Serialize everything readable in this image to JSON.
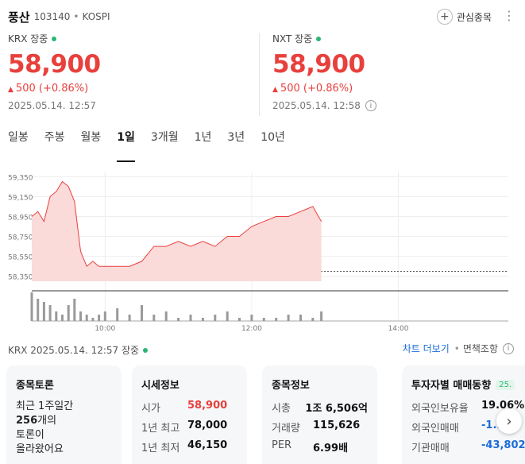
{
  "header": {
    "stock_name": "풍산",
    "stock_code": "103140",
    "market": "KOSPI",
    "watch_label": "관심종목"
  },
  "krx": {
    "label": "KRX 장중",
    "price": "58,900",
    "change": "500",
    "change_pct": "(+0.86%)",
    "timestamp": "2025.05.14. 12:57"
  },
  "nxt": {
    "label": "NXT 장중",
    "price": "58,900",
    "change": "500",
    "change_pct": "(+0.86%)",
    "timestamp": "2025.05.14. 12:58"
  },
  "tabs": [
    "일봉",
    "주봉",
    "월봉",
    "1일",
    "3개월",
    "1년",
    "3년",
    "10년"
  ],
  "active_tab": "1일",
  "status": {
    "text": "KRX  2025.05.14. 12:57 장중",
    "chart_more": "차트 더보기",
    "disclaimer": "면책조항"
  },
  "cards": {
    "discussion": {
      "title": "종목토론",
      "line1": "최근 1주일간",
      "line2a": "256",
      "line2b": "개의",
      "line3": "토론이",
      "line4": "올라왔어요"
    },
    "market_info": {
      "title": "시세정보",
      "rows": [
        {
          "k": "시가",
          "v": "58,900"
        },
        {
          "k": "1년 최고",
          "v": "78,000"
        },
        {
          "k": "1년 최저",
          "v": "46,150"
        }
      ]
    },
    "stock_info": {
      "title": "종목정보",
      "rows": [
        {
          "k": "시총",
          "v": "1조 6,506억"
        },
        {
          "k": "거래량",
          "v": "115,626"
        },
        {
          "k": "PER",
          "v": "6.99배"
        }
      ]
    },
    "investor": {
      "title": "투자자별 매매동향",
      "badge": "25.",
      "rows": [
        {
          "k": "외국인보유율",
          "v": "19.06%"
        },
        {
          "k": "외국인매매",
          "v": "-1..."
        },
        {
          "k": "기관매매",
          "v": "-43,802"
        }
      ]
    }
  },
  "colors": {
    "up": "#e8403c",
    "down": "#1a6dd6",
    "live": "#2bb673"
  },
  "chart_data": {
    "type": "area",
    "title": "",
    "xlabel": "",
    "ylabel": "",
    "y_ticks": [
      "59,350",
      "59,150",
      "58,950",
      "58,750",
      "58,550",
      "58,350"
    ],
    "x_ticks": [
      "10:00",
      "12:00",
      "14:00"
    ],
    "ylim": [
      58300,
      59400
    ],
    "prev_close": 58400,
    "grid": true,
    "series": [
      {
        "x": [
          "09:00",
          "09:05",
          "09:10",
          "09:15",
          "09:20",
          "09:25",
          "09:30",
          "09:35",
          "09:40",
          "09:45",
          "09:50",
          "09:55",
          "10:00",
          "10:10",
          "10:20",
          "10:30",
          "10:40",
          "10:50",
          "11:00",
          "11:10",
          "11:20",
          "11:30",
          "11:40",
          "11:50",
          "12:00",
          "12:10",
          "12:20",
          "12:30",
          "12:40",
          "12:50",
          "12:57"
        ],
        "values": [
          58950,
          59000,
          58900,
          59150,
          59200,
          59300,
          59250,
          59100,
          58600,
          58450,
          58500,
          58450,
          58450,
          58450,
          58450,
          58500,
          58650,
          58650,
          58700,
          58650,
          58700,
          58650,
          58750,
          58750,
          58850,
          58900,
          58950,
          58950,
          59000,
          59050,
          58900
        ]
      }
    ],
    "volume": [
      9,
      7,
      6,
      5,
      3,
      2,
      5,
      7,
      3,
      2,
      1,
      2,
      3,
      4,
      2,
      5,
      2,
      3,
      1,
      2,
      1,
      2,
      3,
      1,
      2,
      1,
      1,
      2,
      2,
      1,
      3
    ]
  }
}
